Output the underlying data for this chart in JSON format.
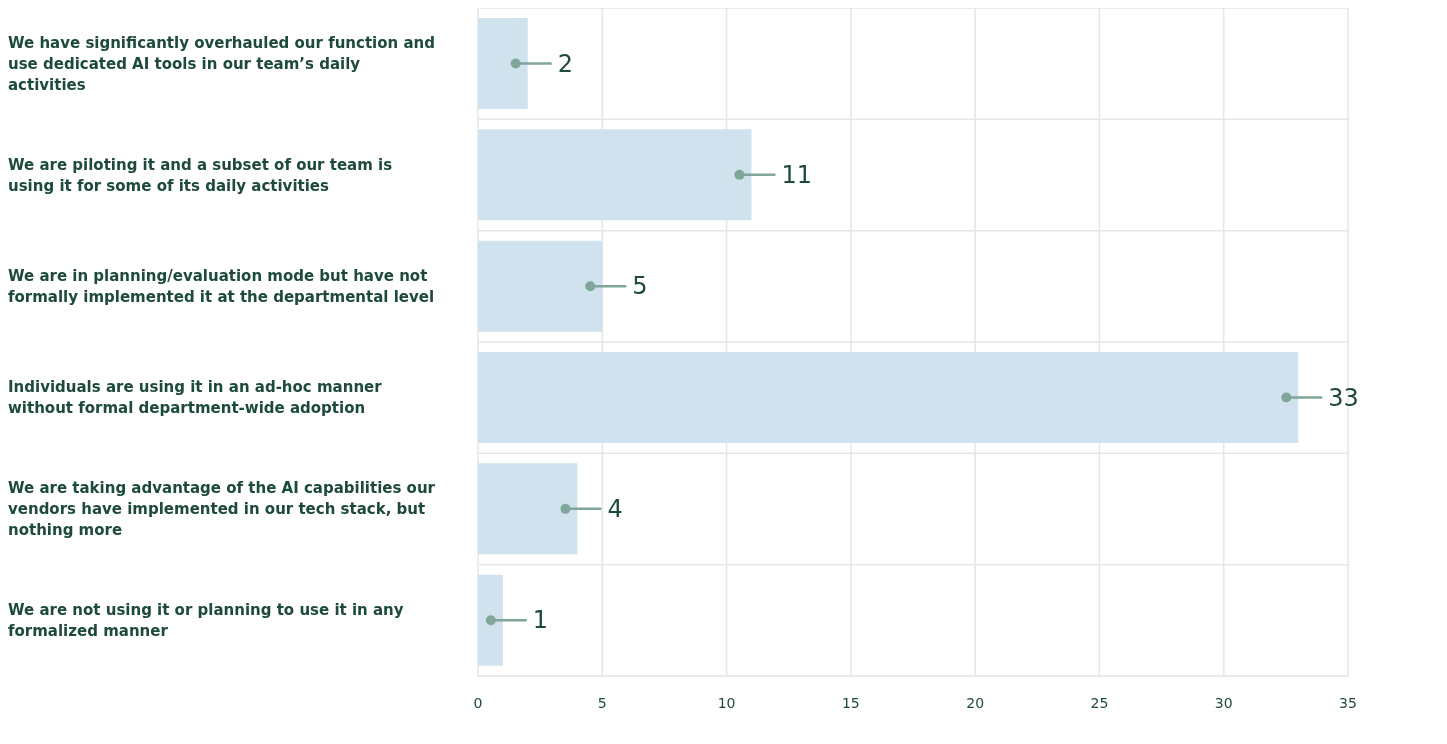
{
  "chart_data": {
    "type": "bar",
    "orientation": "horizontal",
    "categories": [
      "We have significantly overhauled our function and use dedicated AI tools in our team’s daily activities",
      "We are piloting it and a subset of our team is using it for some of its daily activities",
      "We are in planning/evaluation mode but have not formally implemented it at the departmental level",
      "Individuals are using it in an ad-hoc manner without formal department-wide adoption",
      "We are taking advantage of the AI capabilities our vendors have implemented in our tech stack, but nothing more",
      "We are not using it or planning to use it in any formalized manner"
    ],
    "values": [
      2,
      11,
      5,
      33,
      4,
      1
    ],
    "color": "#cfe2ed",
    "xlim": [
      0,
      35
    ],
    "xticks": [
      0,
      5,
      10,
      15,
      20,
      25,
      30,
      35
    ],
    "grid": true,
    "data_labels": true
  }
}
